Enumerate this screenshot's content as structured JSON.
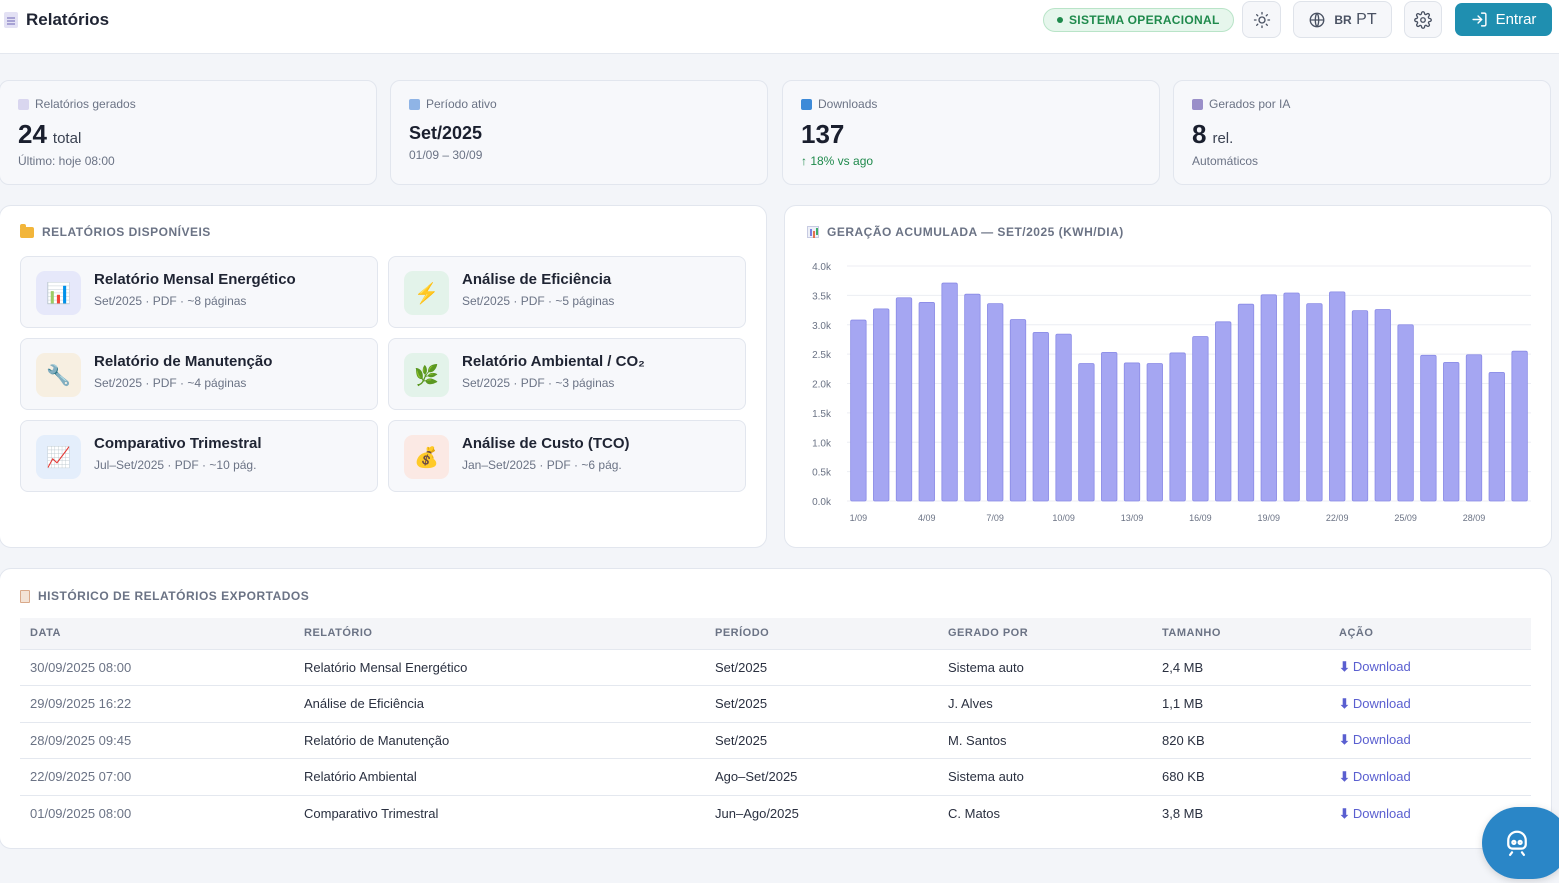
{
  "header": {
    "title": "Relatórios",
    "status": "SISTEMA OPERACIONAL",
    "lang_flag": "BR",
    "lang_code": "PT",
    "login_label": "Entrar"
  },
  "kpis": [
    {
      "label": "Relatórios gerados",
      "value": "24",
      "unit": "total",
      "sub": "Último: hoje 08:00",
      "color": "#d9d6ef"
    },
    {
      "label": "Período ativo",
      "value": "Set/2025",
      "unit": "",
      "sub": "01/09 – 30/09",
      "color": "#8fb4e6"
    },
    {
      "label": "Downloads",
      "value": "137",
      "unit": "",
      "sub": "↑ 18% vs ago",
      "color": "#3d8ad8"
    },
    {
      "label": "Gerados por IA",
      "value": "8",
      "unit": "rel.",
      "sub": "Automáticos",
      "color": "#9a8fc9"
    }
  ],
  "reports": {
    "title": "RELATÓRIOS DISPONÍVEIS",
    "items": [
      {
        "title": "Relatório Mensal Energético",
        "meta": "Set/2025 · PDF · ~8 páginas",
        "icon": "bar-chart-icon",
        "glyph": "📊",
        "bg": "#e6e8fa"
      },
      {
        "title": "Análise de Eficiência",
        "meta": "Set/2025 · PDF · ~5 páginas",
        "icon": "lightning-icon",
        "glyph": "⚡",
        "bg": "#e3f3ea"
      },
      {
        "title": "Relatório de Manutenção",
        "meta": "Set/2025 · PDF · ~4 páginas",
        "icon": "wrench-icon",
        "glyph": "🔧",
        "bg": "#f7efe1"
      },
      {
        "title": "Relatório Ambiental / CO₂",
        "meta": "Set/2025 · PDF · ~3 páginas",
        "icon": "leaf-icon",
        "glyph": "🌿",
        "bg": "#e3f3ea"
      },
      {
        "title": "Comparativo Trimestral",
        "meta": "Jul–Set/2025 · PDF · ~10 pág.",
        "icon": "trend-chart-icon",
        "glyph": "📈",
        "bg": "#e4eefb"
      },
      {
        "title": "Análise de Custo (TCO)",
        "meta": "Jan–Set/2025 · PDF · ~6 pág.",
        "icon": "money-bag-icon",
        "glyph": "💰",
        "bg": "#fbe9e4"
      }
    ]
  },
  "chart_data": {
    "type": "bar",
    "title": "GERAÇÃO ACUMULADA — SET/2025 (KWH/DIA)",
    "categories": [
      "1/09",
      "2/09",
      "3/09",
      "4/09",
      "5/09",
      "6/09",
      "7/09",
      "8/09",
      "9/09",
      "10/09",
      "11/09",
      "12/09",
      "13/09",
      "14/09",
      "15/09",
      "16/09",
      "17/09",
      "18/09",
      "19/09",
      "20/09",
      "21/09",
      "22/09",
      "23/09",
      "24/09",
      "25/09",
      "26/09",
      "27/09",
      "28/09",
      "29/09",
      "30/09"
    ],
    "tick_labels": [
      "1/09",
      "4/09",
      "7/09",
      "10/09",
      "13/09",
      "16/09",
      "19/09",
      "22/09",
      "25/09",
      "28/09"
    ],
    "values": [
      3080,
      3270,
      3460,
      3380,
      3710,
      3520,
      3360,
      3090,
      2870,
      2840,
      2340,
      2530,
      2350,
      2340,
      2520,
      2800,
      3050,
      3350,
      3510,
      3540,
      3360,
      3560,
      3240,
      3260,
      3000,
      2480,
      2360,
      2490,
      2190,
      2550
    ],
    "yticks": [
      "0.0k",
      "0.5k",
      "1.0k",
      "1.5k",
      "2.0k",
      "2.5k",
      "3.0k",
      "3.5k",
      "4.0k"
    ],
    "ylim": [
      0,
      4000
    ],
    "bar_color": "#a5a6f2",
    "grid": true
  },
  "history": {
    "title": "HISTÓRICO DE RELATÓRIOS EXPORTADOS",
    "columns": [
      "DATA",
      "RELATÓRIO",
      "PERÍODO",
      "GERADO POR",
      "TAMANHO",
      "AÇÃO"
    ],
    "rows": [
      {
        "date": "30/09/2025 08:00",
        "report": "Relatório Mensal Energético",
        "period": "Set/2025",
        "by": "Sistema auto",
        "size": "2,4 MB",
        "action": "Download"
      },
      {
        "date": "29/09/2025 16:22",
        "report": "Análise de Eficiência",
        "period": "Set/2025",
        "by": "J. Alves",
        "size": "1,1 MB",
        "action": "Download"
      },
      {
        "date": "28/09/2025 09:45",
        "report": "Relatório de Manutenção",
        "period": "Set/2025",
        "by": "M. Santos",
        "size": "820 KB",
        "action": "Download"
      },
      {
        "date": "22/09/2025 07:00",
        "report": "Relatório Ambiental",
        "period": "Ago–Set/2025",
        "by": "Sistema auto",
        "size": "680 KB",
        "action": "Download"
      },
      {
        "date": "01/09/2025 08:00",
        "report": "Comparativo Trimestral",
        "period": "Jun–Ago/2025",
        "by": "C. Matos",
        "size": "3,8 MB",
        "action": "Download"
      }
    ]
  }
}
